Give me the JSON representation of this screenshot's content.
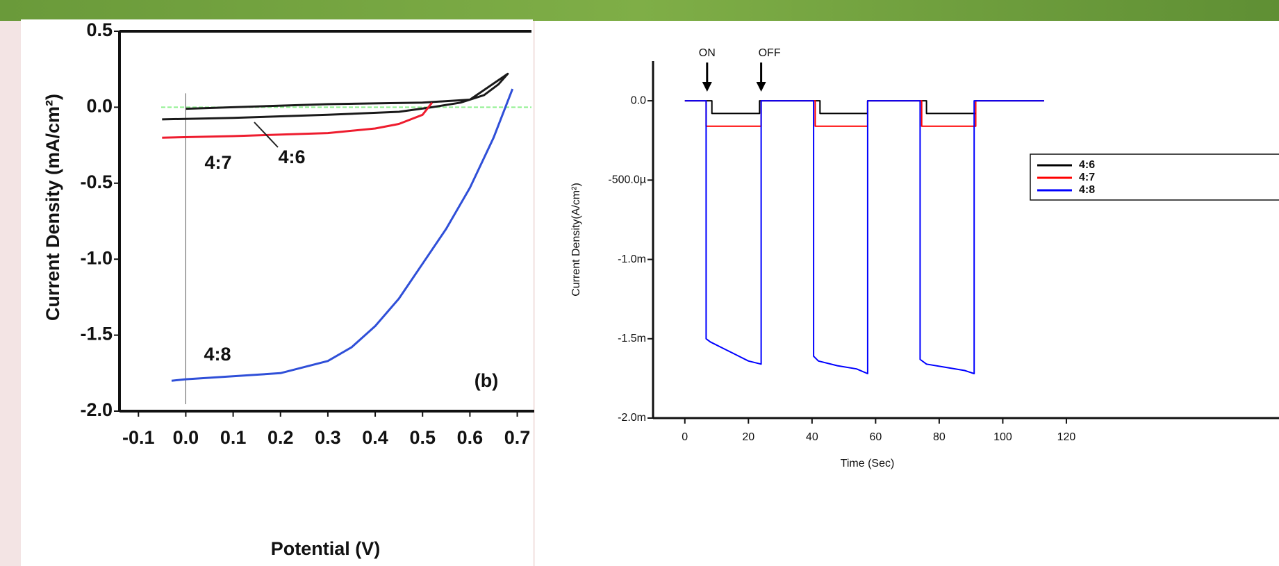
{
  "chart_data": [
    {
      "type": "line",
      "x_label": "Potential (V)",
      "y_label": "Current Density (mA/cm²)",
      "annotation": "(b)",
      "xlim": [
        -0.14,
        0.73
      ],
      "ylim": [
        -2.0,
        0.5
      ],
      "xticks": [
        -0.1,
        {
          "value": 0,
          "label": "0.0"
        },
        0.1,
        0.2,
        0.3,
        0.4,
        0.5,
        0.6,
        0.7
      ],
      "yticks": [
        0.5,
        {
          "value": 0,
          "label": "0.0"
        },
        -0.5,
        {
          "value": -1,
          "label": "-1.0"
        },
        -1.5,
        {
          "value": -2,
          "label": "-2.0"
        }
      ],
      "series": [
        {
          "name": "4:6",
          "color": "#1a1a1a",
          "x": [
            -0.05,
            0.1,
            0.3,
            0.45,
            0.52,
            0.58,
            0.63,
            0.66,
            0.68,
            0.6,
            0.5,
            0.3,
            0.1,
            0.0
          ],
          "values": [
            -0.08,
            -0.07,
            -0.05,
            -0.03,
            0.0,
            0.03,
            0.08,
            0.15,
            0.22,
            0.05,
            0.03,
            0.02,
            0.0,
            -0.01
          ]
        },
        {
          "name": "4:7",
          "color": "#ee1c2e",
          "x": [
            -0.05,
            0.1,
            0.3,
            0.4,
            0.45,
            0.5,
            0.52
          ],
          "values": [
            -0.2,
            -0.19,
            -0.17,
            -0.14,
            -0.11,
            -0.05,
            0.03
          ]
        },
        {
          "name": "4:8",
          "color": "#2f4fd8",
          "x": [
            -0.03,
            0.0,
            0.1,
            0.2,
            0.3,
            0.35,
            0.4,
            0.45,
            0.5,
            0.55,
            0.6,
            0.65,
            0.69
          ],
          "values": [
            -1.8,
            -1.79,
            -1.77,
            -1.75,
            -1.67,
            -1.58,
            -1.44,
            -1.26,
            -1.03,
            -0.8,
            -0.53,
            -0.2,
            0.12
          ]
        }
      ]
    },
    {
      "type": "line",
      "x_label": "Time (Sec)",
      "y_label": "Current Density(A/cm²)",
      "legend": "right",
      "annotations": [
        {
          "text": "ON",
          "x": 7
        },
        {
          "text": "OFF",
          "x": 24
        }
      ],
      "xlim": [
        -10,
        186
      ],
      "ylim": [
        -0.002,
        0.00025
      ],
      "xticks": [
        0,
        20,
        40,
        60,
        80,
        100,
        120
      ],
      "yticks": [
        {
          "value": 0,
          "label": "0.0"
        },
        {
          "value": -0.0005,
          "label": "-500.0µ"
        },
        {
          "value": -0.001,
          "label": "-1.0m"
        },
        {
          "value": -0.0015,
          "label": "-1.5m"
        },
        {
          "value": -0.002,
          "label": "-2.0m"
        }
      ],
      "series": [
        {
          "name": "4:6",
          "color": "#000000",
          "x": [
            0,
            8.5,
            8.5,
            23.5,
            23.5,
            42.5,
            42.5,
            57.5,
            57.5,
            76,
            76,
            91.5,
            91.5,
            113
          ],
          "values": [
            0,
            0,
            -8e-05,
            -8e-05,
            0,
            0,
            -8e-05,
            -8e-05,
            0,
            0,
            -8e-05,
            -8e-05,
            0,
            0
          ]
        },
        {
          "name": "4:7",
          "color": "#ff0000",
          "x": [
            0,
            6.7,
            6.7,
            24,
            24,
            41,
            41,
            57.5,
            57.5,
            74.5,
            74.5,
            91.5,
            91.5,
            113
          ],
          "values": [
            0,
            0,
            -0.00016,
            -0.00016,
            0,
            0,
            -0.00016,
            -0.00016,
            0,
            0,
            -0.00016,
            -0.00016,
            0,
            0
          ]
        },
        {
          "name": "4:8",
          "color": "#0000ff",
          "x": [
            0,
            6.7,
            6.7,
            8,
            12,
            16,
            20,
            24,
            24,
            40.5,
            40.5,
            42,
            48,
            54,
            57.5,
            57.5,
            74,
            74,
            76,
            82,
            88,
            91,
            91,
            113
          ],
          "values": [
            0,
            0,
            -0.0015,
            -0.00152,
            -0.00156,
            -0.0016,
            -0.00164,
            -0.00166,
            0,
            0,
            -0.00161,
            -0.00164,
            -0.00167,
            -0.00169,
            -0.00172,
            0,
            0,
            -0.00163,
            -0.00166,
            -0.00168,
            -0.0017,
            -0.00172,
            0,
            0
          ]
        }
      ]
    }
  ]
}
